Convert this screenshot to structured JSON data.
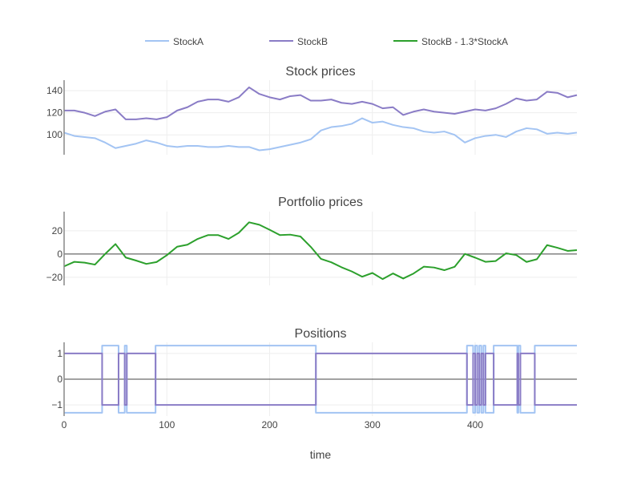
{
  "chart_data": [
    {
      "type": "line",
      "title": "Stock prices",
      "ylim": [
        82,
        149.5
      ],
      "yticks": [
        100,
        120,
        140
      ],
      "xlim": [
        0,
        499
      ],
      "grid": true,
      "series": [
        {
          "name": "StockA",
          "color": "#a3c4f3",
          "x": [
            0,
            10,
            20,
            30,
            40,
            50,
            60,
            70,
            80,
            90,
            100,
            110,
            120,
            130,
            140,
            150,
            160,
            170,
            180,
            190,
            200,
            210,
            220,
            230,
            240,
            250,
            260,
            270,
            280,
            290,
            300,
            310,
            320,
            330,
            340,
            350,
            360,
            370,
            380,
            390,
            400,
            410,
            420,
            430,
            440,
            450,
            460,
            470,
            480,
            490,
            499
          ],
          "y": [
            102,
            99,
            98,
            97,
            93,
            88,
            90,
            92,
            95,
            93,
            90,
            89,
            90,
            90,
            89,
            89,
            90,
            89,
            89,
            86,
            87,
            89,
            91,
            93,
            96,
            104,
            107,
            108,
            110,
            115,
            111,
            112,
            109,
            107,
            106,
            103,
            102,
            103,
            100,
            93,
            97,
            99,
            100,
            98,
            103,
            106,
            105,
            101,
            102,
            101,
            102
          ]
        },
        {
          "name": "StockB",
          "color": "#8a7cc6",
          "x": [
            0,
            10,
            20,
            30,
            40,
            50,
            60,
            70,
            80,
            90,
            100,
            110,
            120,
            130,
            140,
            150,
            160,
            170,
            180,
            190,
            200,
            210,
            220,
            230,
            240,
            250,
            260,
            270,
            280,
            290,
            300,
            310,
            320,
            330,
            340,
            350,
            360,
            370,
            380,
            390,
            400,
            410,
            420,
            430,
            440,
            450,
            460,
            470,
            480,
            490,
            499
          ],
          "y": [
            122,
            122,
            120,
            117,
            121,
            123,
            114,
            114,
            115,
            114,
            116,
            122,
            125,
            130,
            132,
            132,
            130,
            134,
            143,
            137,
            134,
            132,
            135,
            136,
            131,
            131,
            132,
            129,
            128,
            130,
            128,
            124,
            125,
            118,
            121,
            123,
            121,
            120,
            119,
            121,
            123,
            122,
            124,
            128,
            133,
            131,
            132,
            139,
            138,
            134,
            136
          ]
        }
      ]
    },
    {
      "type": "line",
      "title": "Portfolio prices",
      "ylim": [
        -27,
        36.5
      ],
      "yticks": [
        -20,
        0,
        20
      ],
      "ytick_labels": [
        "−20",
        "0",
        "20"
      ],
      "xlim": [
        0,
        499
      ],
      "grid": true,
      "series": [
        {
          "name": "StockB - 1.3*StockA",
          "color": "#2ca02c",
          "x": [
            0,
            10,
            20,
            30,
            40,
            50,
            60,
            70,
            80,
            90,
            100,
            110,
            120,
            130,
            140,
            150,
            160,
            170,
            180,
            190,
            200,
            210,
            220,
            230,
            240,
            250,
            260,
            270,
            280,
            290,
            300,
            310,
            320,
            330,
            340,
            350,
            360,
            370,
            380,
            390,
            400,
            410,
            420,
            430,
            440,
            450,
            460,
            470,
            480,
            490,
            499
          ],
          "y": [
            -10.6,
            -6.7,
            -7.4,
            -9.1,
            0.1,
            8.6,
            -3,
            -5.6,
            -8.5,
            -6.9,
            -1,
            6.3,
            8,
            13,
            16.3,
            16.3,
            13,
            18.3,
            27.3,
            25.2,
            20.9,
            16.3,
            16.7,
            15.1,
            6.2,
            -4.2,
            -7.1,
            -11.4,
            -15,
            -19.5,
            -16.3,
            -21.6,
            -16.7,
            -21.1,
            -16.8,
            -10.9,
            -11.6,
            -13.9,
            -11,
            0.1,
            -3.1,
            -6.7,
            -6,
            0.6,
            -0.9,
            -6.8,
            -4.5,
            7.7,
            5.4,
            2.7,
            3.4
          ]
        }
      ]
    },
    {
      "type": "line",
      "title": "Positions",
      "ylim": [
        -1.43,
        1.43
      ],
      "yticks": [
        -1,
        0,
        1
      ],
      "ytick_labels": [
        "−1",
        "0",
        "1"
      ],
      "xlim": [
        0,
        499
      ],
      "xticks": [
        0,
        100,
        200,
        300,
        400
      ],
      "xlabel": "time",
      "grid": true,
      "step": true,
      "series": [
        {
          "name": "StockA",
          "color": "#a3c4f3",
          "x": [
            0,
            37,
            53,
            59,
            61,
            89,
            245,
            392,
            398,
            400,
            402,
            404,
            406,
            408,
            410,
            418,
            441,
            442,
            444,
            458,
            499
          ],
          "y": [
            -1.3,
            1.3,
            -1.3,
            1.3,
            -1.3,
            1.3,
            -1.3,
            1.3,
            -1.3,
            1.3,
            -1.3,
            1.3,
            -1.3,
            1.3,
            -1.3,
            1.3,
            -1.3,
            1.3,
            -1.3,
            1.3,
            1.3
          ]
        },
        {
          "name": "StockB",
          "color": "#8a7cc6",
          "x": [
            0,
            37,
            53,
            59,
            61,
            89,
            245,
            392,
            398,
            400,
            402,
            404,
            406,
            408,
            410,
            418,
            441,
            442,
            444,
            458,
            499
          ],
          "y": [
            1,
            -1,
            1,
            -1,
            1,
            -1,
            1,
            -1,
            1,
            -1,
            1,
            -1,
            1,
            -1,
            1,
            -1,
            1,
            -1,
            1,
            -1,
            -1
          ]
        }
      ]
    }
  ],
  "legend": {
    "placement": "top",
    "items": [
      {
        "label": "StockA",
        "color": "#a3c4f3"
      },
      {
        "label": "StockB",
        "color": "#8a7cc6"
      },
      {
        "label": "StockB - 1.3*StockA",
        "color": "#2ca02c"
      }
    ]
  }
}
